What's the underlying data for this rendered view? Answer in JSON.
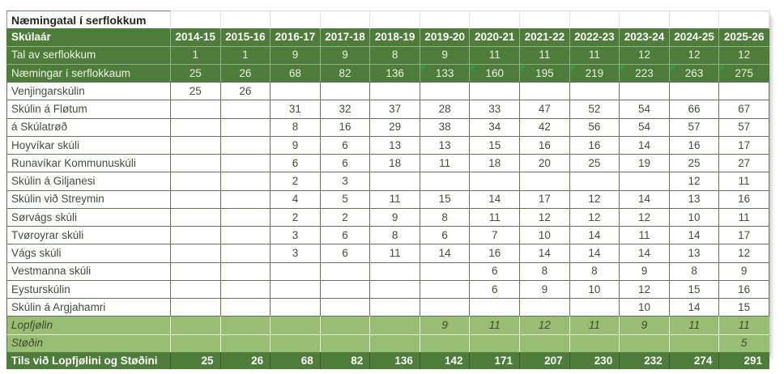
{
  "sheet": {
    "title": "Næmingatal í serflokkum",
    "header": {
      "label": "Skúlaár",
      "years": [
        "2014-15",
        "2015-16",
        "2016-17",
        "2017-18",
        "2018-19",
        "2019-20",
        "2020-21",
        "2021-22",
        "2022-23",
        "2023-24",
        "2024-25",
        "2025-26"
      ]
    },
    "dark_rows": [
      {
        "label": "Tal av serflokkum",
        "values": [
          "1",
          "1",
          "9",
          "9",
          "8",
          "9",
          "11",
          "11",
          "11",
          "12",
          "12",
          "12"
        ],
        "flagged": []
      },
      {
        "label": "Næmingar í serflokkaum",
        "values": [
          "25",
          "26",
          "68",
          "82",
          "136",
          "133",
          "160",
          "195",
          "219",
          "223",
          "263",
          "275"
        ],
        "flagged": [
          5,
          6,
          7,
          8,
          9,
          10,
          11
        ]
      }
    ],
    "school_rows": [
      {
        "label": "Venjingarskúlin",
        "values": [
          "25",
          "26",
          "",
          "",
          "",
          "",
          "",
          "",
          "",
          "",
          "",
          ""
        ]
      },
      {
        "label": "Skúlin á Fløtum",
        "values": [
          "",
          "",
          "31",
          "32",
          "37",
          "28",
          "33",
          "47",
          "52",
          "54",
          "66",
          "67"
        ]
      },
      {
        "label": "á Skúlatrøð",
        "values": [
          "",
          "",
          "8",
          "16",
          "29",
          "38",
          "34",
          "42",
          "56",
          "54",
          "57",
          "57"
        ]
      },
      {
        "label": "Hoyvíkar skúli",
        "values": [
          "",
          "",
          "9",
          "6",
          "13",
          "13",
          "15",
          "16",
          "16",
          "14",
          "16",
          "17"
        ]
      },
      {
        "label": "Runavíkar Kommunuskúli",
        "values": [
          "",
          "",
          "6",
          "6",
          "18",
          "11",
          "18",
          "20",
          "25",
          "19",
          "25",
          "27"
        ]
      },
      {
        "label": "Skúlin á Giljanesi",
        "values": [
          "",
          "",
          "2",
          "3",
          "",
          "",
          "",
          "",
          "",
          "",
          "12",
          "11"
        ]
      },
      {
        "label": "Skúlin við Streymin",
        "values": [
          "",
          "",
          "4",
          "5",
          "11",
          "15",
          "14",
          "17",
          "12",
          "14",
          "13",
          "16"
        ]
      },
      {
        "label": "Sørvágs skúli",
        "values": [
          "",
          "",
          "2",
          "2",
          "9",
          "8",
          "11",
          "12",
          "12",
          "12",
          "10",
          "11"
        ]
      },
      {
        "label": "Tvøroyrar skúli",
        "values": [
          "",
          "",
          "3",
          "6",
          "8",
          "6",
          "7",
          "10",
          "14",
          "11",
          "14",
          "17"
        ]
      },
      {
        "label": "Vágs skúli",
        "values": [
          "",
          "",
          "3",
          "6",
          "11",
          "14",
          "16",
          "14",
          "14",
          "14",
          "13",
          "12"
        ]
      },
      {
        "label": "Vestmanna skúli",
        "values": [
          "",
          "",
          "",
          "",
          "",
          "",
          "6",
          "8",
          "8",
          "9",
          "8",
          "9"
        ]
      },
      {
        "label": "Eysturskúlin",
        "values": [
          "",
          "",
          "",
          "",
          "",
          "",
          "6",
          "9",
          "10",
          "12",
          "15",
          "16"
        ]
      },
      {
        "label": "Skúlin á Argjahamri",
        "values": [
          "",
          "",
          "",
          "",
          "",
          "",
          "",
          "",
          "",
          "10",
          "14",
          "15"
        ]
      }
    ],
    "highlight_rows": [
      {
        "label": "Lopfjølin",
        "values": [
          "",
          "",
          "",
          "",
          "",
          "9",
          "11",
          "12",
          "11",
          "9",
          "11",
          "11"
        ]
      },
      {
        "label": "Støðin",
        "values": [
          "",
          "",
          "",
          "",
          "",
          "",
          "",
          "",
          "",
          "",
          "",
          "5"
        ]
      }
    ],
    "total_row": {
      "label": "Tils við Lopfjølini og Støðini",
      "values": [
        "25",
        "26",
        "68",
        "82",
        "136",
        "142",
        "171",
        "207",
        "230",
        "232",
        "274",
        "291"
      ]
    }
  },
  "colors": {
    "dark_green": "#4e7c3a",
    "light_green": "#97be73",
    "flag_green": "#2f9e3f",
    "text_dark": "#42503a",
    "text_light": "#edf3e2"
  }
}
